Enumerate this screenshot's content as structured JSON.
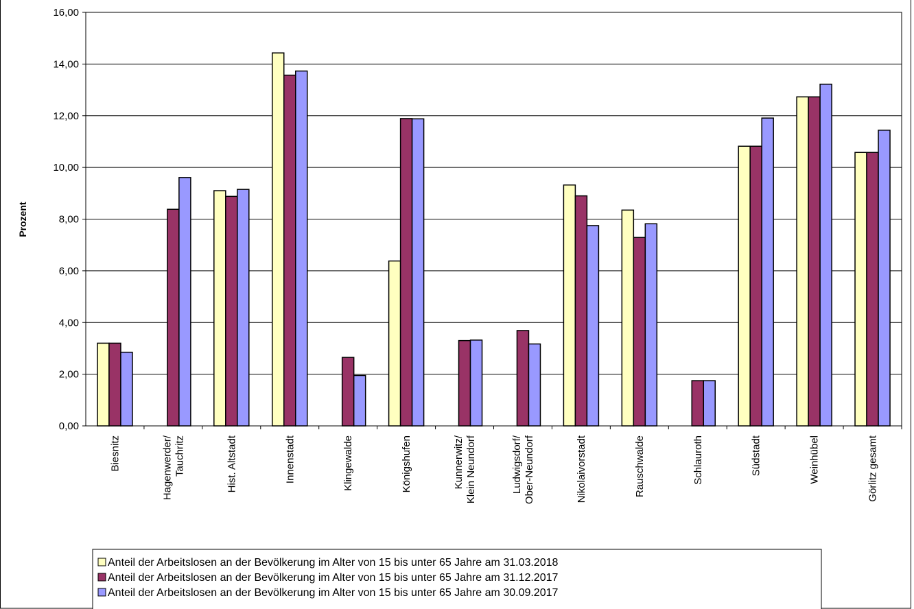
{
  "chart_data": {
    "type": "bar",
    "y_label": "Prozent",
    "categories": [
      "Biesnitz",
      "Hagenwerder/\nTauchritz",
      "Hist. Altstadt",
      "Innenstadt",
      "Klingewalde",
      "Königshufen",
      "Kunnerwitz/\nKlein Neundorf",
      "Ludwigsdorf/\nOber-Neundorf",
      "Nikolaivorstadt",
      "Rauschwalde",
      "Schlauroth",
      "Südstadt",
      "Weinhübel",
      "Görlitz gesamt"
    ],
    "series": [
      {
        "name": "Anteil der Arbeitslosen an der Bevölkerung im Alter von 15 bis unter 65 Jahre am 31.03.2018",
        "color": "#ffffc0",
        "values": [
          3.2,
          null,
          9.1,
          14.43,
          null,
          6.38,
          null,
          null,
          9.32,
          8.35,
          null,
          10.82,
          12.73,
          10.58
        ]
      },
      {
        "name": "Anteil der Arbeitslosen an der Bevölkerung im Alter von 15 bis unter 65 Jahre am 31.12.2017",
        "color": "#993366",
        "values": [
          3.2,
          8.38,
          8.88,
          13.57,
          2.65,
          11.89,
          3.3,
          3.69,
          8.9,
          7.29,
          1.75,
          10.82,
          12.73,
          10.58
        ]
      },
      {
        "name": "Anteil der Arbeitslosen an der Bevölkerung im Alter von 15 bis unter 65 Jahre am 30.09.2017",
        "color": "#9999ff",
        "values": [
          2.85,
          9.61,
          9.15,
          13.73,
          1.95,
          11.88,
          3.32,
          3.17,
          7.75,
          7.82,
          1.75,
          11.91,
          13.22,
          11.44
        ]
      }
    ],
    "ylim": [
      0,
      16
    ],
    "yticks": [
      {
        "value": 0,
        "label": "0,00"
      },
      {
        "value": 2,
        "label": "2,00"
      },
      {
        "value": 4,
        "label": "4,00"
      },
      {
        "value": 6,
        "label": "6,00"
      },
      {
        "value": 8,
        "label": "8,00"
      },
      {
        "value": 10,
        "label": "10,00"
      },
      {
        "value": 12,
        "label": "12,00"
      },
      {
        "value": 14,
        "label": "14,00"
      },
      {
        "value": 16,
        "label": "16,00"
      }
    ],
    "grid": true
  }
}
